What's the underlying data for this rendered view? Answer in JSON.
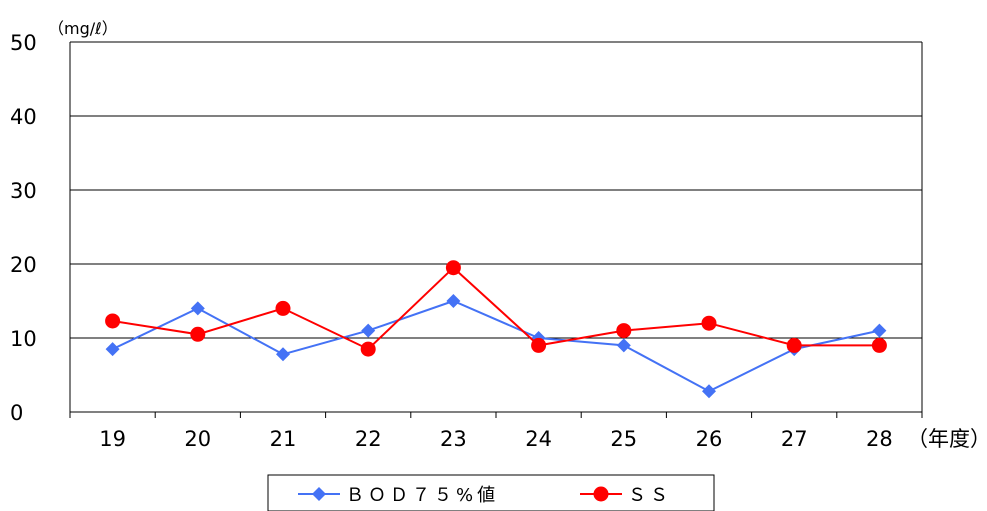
{
  "chart_data": {
    "type": "line",
    "categories": [
      "19",
      "20",
      "21",
      "22",
      "23",
      "24",
      "25",
      "26",
      "27",
      "28"
    ],
    "x_unit": "（年度）",
    "y_unit": "（mg/ℓ）",
    "ylim": [
      0,
      50
    ],
    "yticks": [
      "0",
      "10",
      "20",
      "30",
      "40",
      "50"
    ],
    "grid": true,
    "legend_position": "bottom",
    "series": [
      {
        "name": "ＢＯＤ７５%値",
        "color": "#4472f5",
        "marker": "diamond",
        "values": [
          8.5,
          14,
          7.8,
          11,
          15,
          10,
          9,
          2.8,
          8.5,
          11
        ]
      },
      {
        "name": "ＳＳ",
        "color": "#ff0000",
        "marker": "circle",
        "values": [
          12.3,
          10.5,
          14,
          8.5,
          19.5,
          9,
          11,
          12,
          9,
          9
        ]
      }
    ]
  }
}
